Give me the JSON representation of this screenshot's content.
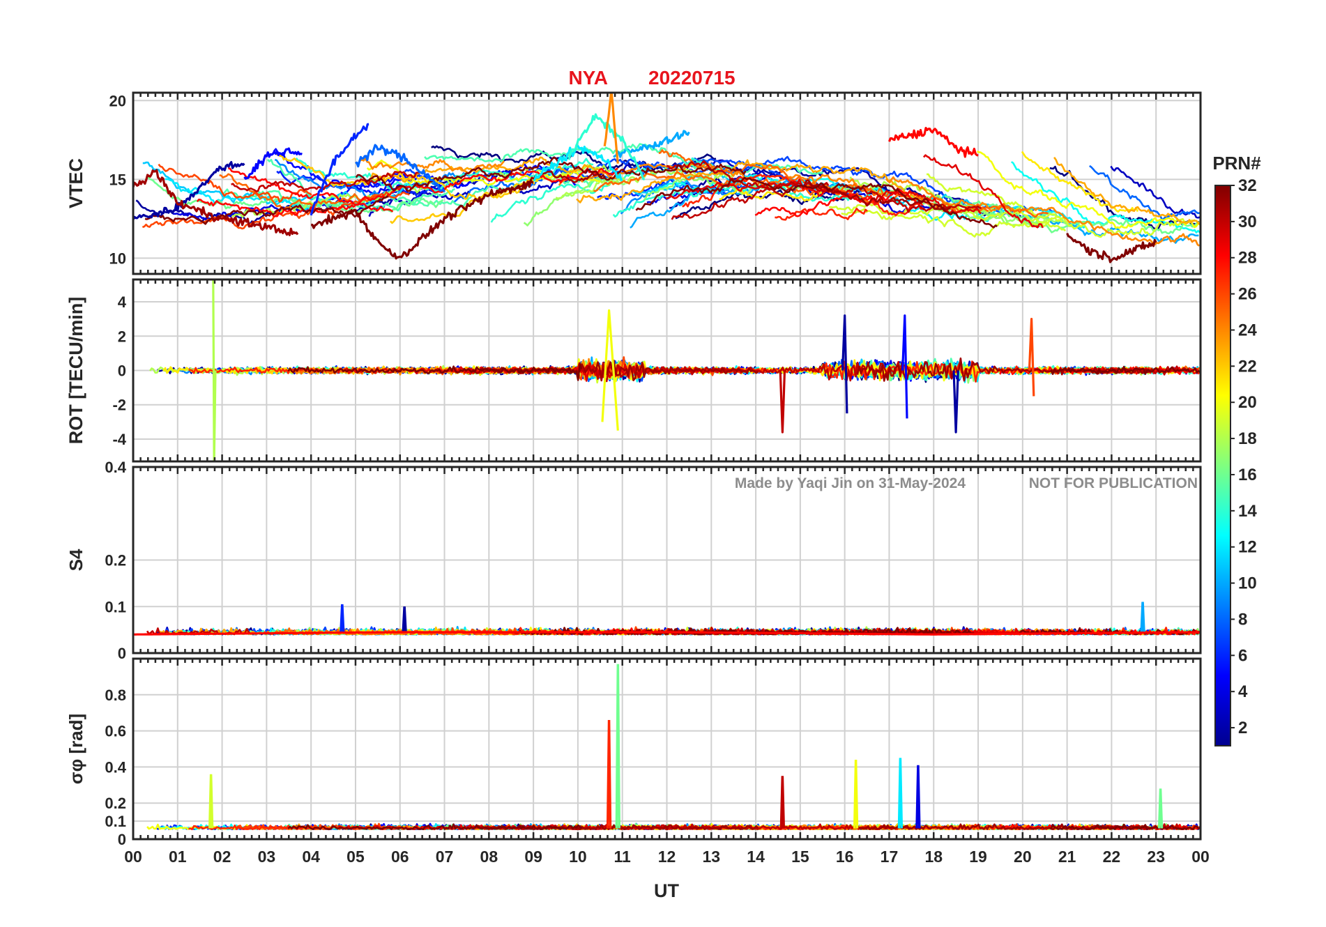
{
  "title": {
    "station": "NYA",
    "date": "20220715",
    "color": "#e8141d"
  },
  "watermark": {
    "credit": "Made by Yaqi Jin on 31-May-2024",
    "notice": "NOT FOR PUBLICATION",
    "color": "#8c8c8c"
  },
  "colorbar": {
    "label": "PRN#",
    "ticks": [
      "2",
      "4",
      "6",
      "8",
      "10",
      "12",
      "14",
      "16",
      "18",
      "20",
      "22",
      "24",
      "26",
      "28",
      "30",
      "32"
    ],
    "range": [
      1,
      32
    ],
    "colormap": "jet"
  },
  "x_axis": {
    "label": "UT",
    "range": [
      0,
      24
    ],
    "ticks": [
      "00",
      "01",
      "02",
      "03",
      "04",
      "05",
      "06",
      "07",
      "08",
      "09",
      "10",
      "11",
      "12",
      "13",
      "14",
      "15",
      "16",
      "17",
      "18",
      "19",
      "20",
      "21",
      "22",
      "23",
      "00"
    ]
  },
  "chart_data": [
    {
      "type": "line",
      "panel": "VTEC",
      "ylabel": "VTEC",
      "ylim": [
        9,
        20.5
      ],
      "yticks": [
        "10",
        "15",
        "20"
      ],
      "grid": true,
      "series_count": 32,
      "series": [
        {
          "name": "PRN 2",
          "x": [
            0.0,
            0.5,
            1.0,
            1.5,
            2.0,
            2.5
          ],
          "values": [
            12.5,
            12.8,
            13.2,
            14.5,
            15.8,
            16.0
          ]
        },
        {
          "name": "PRN 5",
          "x": [
            2.5,
            3.0,
            3.5,
            3.8
          ],
          "values": [
            15.0,
            16.5,
            16.8,
            16.6
          ]
        },
        {
          "name": "PRN 6",
          "x": [
            4.0,
            4.5,
            5.0,
            5.3
          ],
          "values": [
            13.0,
            16.0,
            17.8,
            18.5
          ]
        },
        {
          "name": "PRN 8",
          "x": [
            5.0,
            5.5,
            6.0,
            6.5,
            7.0
          ],
          "values": [
            16.0,
            17.0,
            16.5,
            15.5,
            14.2
          ]
        },
        {
          "name": "PRN 10",
          "x": [
            10.8,
            11.5,
            12.0,
            12.5
          ],
          "values": [
            16.5,
            17.0,
            17.5,
            18.0
          ]
        },
        {
          "name": "PRN 12",
          "x": [
            9.0,
            9.5,
            10.0,
            10.5,
            11.0
          ],
          "values": [
            15.0,
            16.0,
            17.0,
            16.5,
            15.0
          ]
        },
        {
          "name": "PRN 14",
          "x": [
            9.8,
            10.4,
            11.0,
            11.5
          ],
          "values": [
            16.5,
            19.0,
            17.5,
            15.0
          ]
        },
        {
          "name": "PRN 24",
          "x": [
            10.6,
            10.75,
            10.9
          ],
          "values": [
            17.0,
            20.5,
            16.0
          ]
        },
        {
          "name": "PRN 28",
          "x": [
            17.0,
            17.5,
            18.0,
            18.5,
            19.0
          ],
          "values": [
            17.5,
            17.8,
            18.2,
            17.0,
            16.5
          ]
        },
        {
          "name": "PRN 31",
          "x": [
            0.0,
            0.5,
            1.0,
            2.0,
            3.0,
            3.7
          ],
          "values": [
            14.5,
            15.5,
            13.5,
            12.5,
            12.0,
            11.5
          ]
        },
        {
          "name": "PRN 32",
          "x": [
            4.0,
            5.0,
            5.5,
            6.0,
            7.0,
            8.0,
            9.0
          ],
          "values": [
            12.0,
            13.0,
            11.0,
            10.0,
            12.5,
            14.0,
            14.8
          ]
        },
        {
          "name": "PRN 32b",
          "x": [
            21.0,
            21.5,
            22.0,
            22.5,
            23.0
          ],
          "values": [
            11.5,
            10.5,
            10.0,
            10.5,
            11.0
          ]
        }
      ]
    },
    {
      "type": "line",
      "panel": "ROT",
      "ylabel": "ROT [TECU/min]",
      "ylim": [
        -5.3,
        5.3
      ],
      "yticks": [
        "-4",
        "-2",
        "0",
        "2",
        "4"
      ],
      "grid": true,
      "series_count": 32,
      "series": [
        {
          "name": "PRN 18",
          "x": [
            1.8,
            1.82,
            1.85
          ],
          "values": [
            5.3,
            -5.3,
            0.0
          ]
        },
        {
          "name": "PRN 2",
          "x": [
            15.95,
            16.0,
            16.05
          ],
          "values": [
            0.0,
            3.2,
            -2.5
          ]
        },
        {
          "name": "PRN 5",
          "x": [
            17.3,
            17.35,
            17.4
          ],
          "values": [
            0.0,
            3.2,
            -2.8
          ]
        },
        {
          "name": "PRN 20",
          "x": [
            10.55,
            10.7,
            10.9
          ],
          "values": [
            -3.0,
            3.5,
            -3.5
          ]
        },
        {
          "name": "PRN 26",
          "x": [
            20.15,
            20.2,
            20.25
          ],
          "values": [
            0.0,
            3.0,
            -1.5
          ]
        },
        {
          "name": "PRN 30",
          "x": [
            14.55,
            14.6,
            14.65
          ],
          "values": [
            0.0,
            -3.6,
            0.0
          ]
        },
        {
          "name": "PRN 2b",
          "x": [
            18.45,
            18.5,
            18.55
          ],
          "values": [
            0.0,
            -3.6,
            0.0
          ]
        }
      ]
    },
    {
      "type": "line",
      "panel": "S4",
      "ylabel": "S4",
      "ylim": [
        0,
        0.4
      ],
      "yticks": [
        "0",
        "0.1",
        "0.2",
        "0.4"
      ],
      "grid": true,
      "series_count": 32,
      "series": [
        {
          "name": "PRN 6",
          "x": [
            4.7
          ],
          "values": [
            0.105
          ]
        },
        {
          "name": "PRN 2",
          "x": [
            6.1
          ],
          "values": [
            0.1
          ]
        },
        {
          "name": "PRN 10",
          "x": [
            22.7
          ],
          "values": [
            0.11
          ]
        },
        {
          "name": "PRN 28",
          "x": [
            0.0,
            6.0,
            12.0,
            18.0,
            24.0
          ],
          "values": [
            0.04,
            0.045,
            0.045,
            0.04,
            0.045
          ]
        }
      ]
    },
    {
      "type": "line",
      "panel": "sigma_phi",
      "ylabel": "σφ [rad]",
      "ylim": [
        0,
        1.0
      ],
      "yticks": [
        "0",
        "0.1",
        "0.2",
        "0.4",
        "0.6",
        "0.8"
      ],
      "grid": true,
      "series_count": 32,
      "series": [
        {
          "name": "PRN 16",
          "x": [
            10.9
          ],
          "values": [
            0.97
          ]
        },
        {
          "name": "PRN 27",
          "x": [
            10.7
          ],
          "values": [
            0.66
          ]
        },
        {
          "name": "PRN 19",
          "x": [
            1.75
          ],
          "values": [
            0.36
          ]
        },
        {
          "name": "PRN 20",
          "x": [
            16.25
          ],
          "values": [
            0.44
          ]
        },
        {
          "name": "PRN 12",
          "x": [
            17.25
          ],
          "values": [
            0.45
          ]
        },
        {
          "name": "PRN 4",
          "x": [
            17.65
          ],
          "values": [
            0.41
          ]
        },
        {
          "name": "PRN 30",
          "x": [
            14.6
          ],
          "values": [
            0.35
          ]
        },
        {
          "name": "PRN 16b",
          "x": [
            23.1
          ],
          "values": [
            0.28
          ]
        }
      ]
    }
  ]
}
